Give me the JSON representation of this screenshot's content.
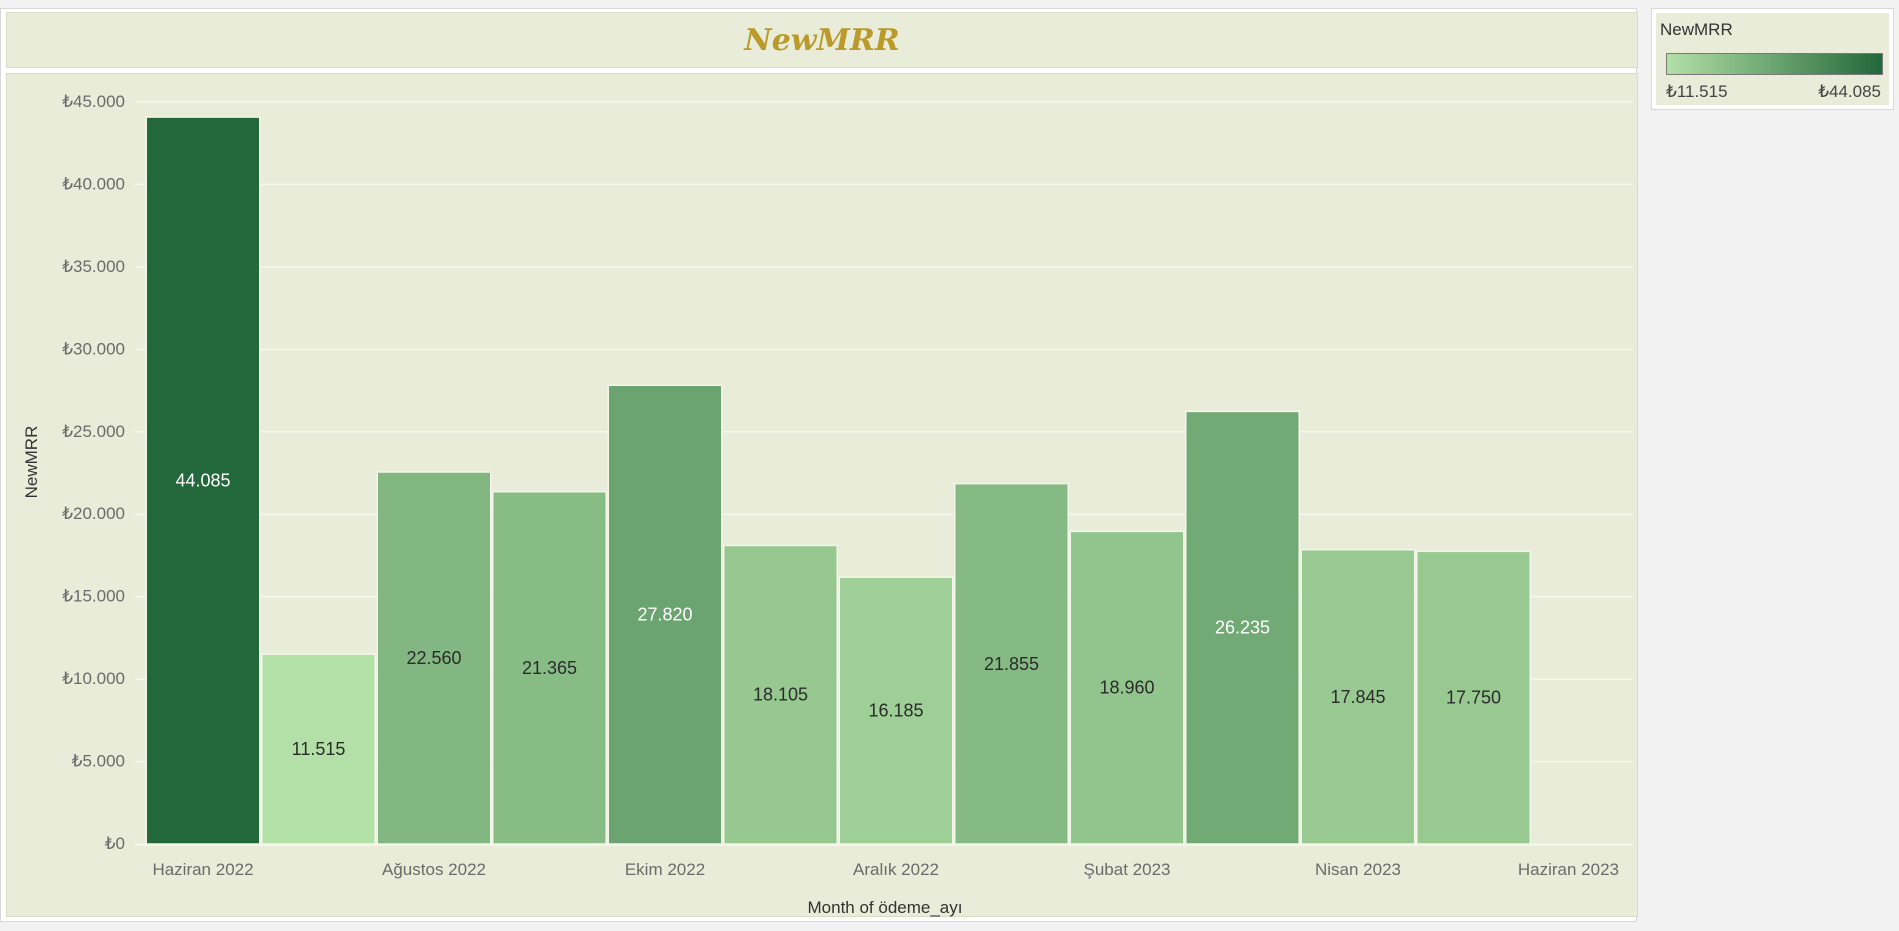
{
  "title": "NewMRR",
  "legend": {
    "title": "NewMRR",
    "min_label": "₺11.515",
    "max_label": "₺44.085",
    "color_low": "#b3e0a6",
    "color_high": "#23683a"
  },
  "colors": {
    "background": "#e8ecd8",
    "title": "#b99a2a",
    "gridline": "#f6f7ef"
  },
  "chart_data": {
    "type": "bar",
    "title": "NewMRR",
    "xlabel": "Month of ödeme_ayı",
    "ylabel": "NewMRR",
    "ylim": [
      0,
      45000
    ],
    "grid": true,
    "legend_position": "top-right",
    "y_ticks": [
      {
        "value": 0,
        "label": "₺0"
      },
      {
        "value": 5000,
        "label": "₺5.000"
      },
      {
        "value": 10000,
        "label": "₺10.000"
      },
      {
        "value": 15000,
        "label": "₺15.000"
      },
      {
        "value": 20000,
        "label": "₺20.000"
      },
      {
        "value": 25000,
        "label": "₺25.000"
      },
      {
        "value": 30000,
        "label": "₺30.000"
      },
      {
        "value": 35000,
        "label": "₺35.000"
      },
      {
        "value": 40000,
        "label": "₺40.000"
      },
      {
        "value": 45000,
        "label": "₺45.000"
      }
    ],
    "x_ticks": [
      {
        "month": "2022-06",
        "label": "Haziran 2022"
      },
      {
        "month": "2022-08",
        "label": "Ağustos 2022"
      },
      {
        "month": "2022-10",
        "label": "Ekim 2022"
      },
      {
        "month": "2022-12",
        "label": "Aralık 2022"
      },
      {
        "month": "2023-02",
        "label": "Şubat 2023"
      },
      {
        "month": "2023-04",
        "label": "Nisan 2023"
      },
      {
        "month": "2023-06",
        "label": "Haziran 2023"
      }
    ],
    "bars": [
      {
        "month": "2022-06",
        "value": 44085,
        "label": "44.085"
      },
      {
        "month": "2022-07",
        "value": 11515,
        "label": "11.515"
      },
      {
        "month": "2022-08",
        "value": 22560,
        "label": "22.560"
      },
      {
        "month": "2022-09",
        "value": 21365,
        "label": "21.365"
      },
      {
        "month": "2022-10",
        "value": 27820,
        "label": "27.820"
      },
      {
        "month": "2022-11",
        "value": 18105,
        "label": "18.105"
      },
      {
        "month": "2022-12",
        "value": 16185,
        "label": "16.185"
      },
      {
        "month": "2023-01",
        "value": 21855,
        "label": "21.855"
      },
      {
        "month": "2023-02",
        "value": 18960,
        "label": "18.960"
      },
      {
        "month": "2023-03",
        "value": 26235,
        "label": "26.235"
      },
      {
        "month": "2023-04",
        "value": 17845,
        "label": "17.845"
      },
      {
        "month": "2023-05",
        "value": 17750,
        "label": "17.750"
      }
    ]
  }
}
